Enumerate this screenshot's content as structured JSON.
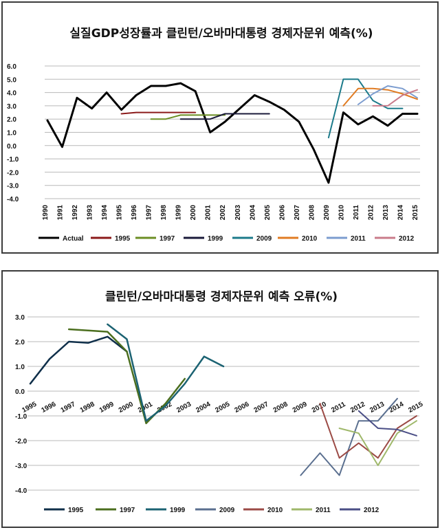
{
  "chart_data": [
    {
      "type": "line",
      "title": "실질GDP성장률과 클린턴/오바마대통령 경제자문위 예측(%)",
      "xlabel": "",
      "ylabel": "",
      "ylim": [
        -4.0,
        6.0
      ],
      "y_ticks": [
        "6.0",
        "5.0",
        "4.0",
        "3.0",
        "2.0",
        "1.0",
        "0.0",
        "-1.0",
        "-2.0",
        "-3.0",
        "-4.0"
      ],
      "x_ticks": [
        "1990",
        "1991",
        "1992",
        "1993",
        "1994",
        "1995",
        "1996",
        "1997",
        "1998",
        "1999",
        "2000",
        "2001",
        "2002",
        "2003",
        "2004",
        "2005",
        "2006",
        "2007",
        "2008",
        "2009",
        "2010",
        "2011",
        "2012",
        "2013",
        "2014",
        "2015"
      ],
      "grid": "horizontal",
      "legend": "bottom",
      "series": [
        {
          "name": "Actual",
          "color": "#000000",
          "width": 3,
          "x": [
            1990,
            1991,
            1992,
            1993,
            1994,
            1995,
            1996,
            1997,
            1998,
            1999,
            2000,
            2001,
            2002,
            2003,
            2004,
            2005,
            2006,
            2007,
            2008,
            2009,
            2010,
            2011,
            2012,
            2013,
            2014,
            2015
          ],
          "values": [
            1.9,
            -0.1,
            3.6,
            2.8,
            4.0,
            2.7,
            3.8,
            4.5,
            4.5,
            4.7,
            4.1,
            1.0,
            1.8,
            2.8,
            3.8,
            3.3,
            2.7,
            1.8,
            -0.3,
            -2.8,
            2.5,
            1.6,
            2.2,
            1.5,
            2.4,
            2.4
          ]
        },
        {
          "name": "1995",
          "color": "#8b1a1a",
          "width": 2,
          "x": [
            1995,
            1996,
            1997,
            1998,
            1999,
            2000
          ],
          "values": [
            2.4,
            2.5,
            2.5,
            2.5,
            2.5,
            2.5
          ]
        },
        {
          "name": "1997",
          "color": "#6b8e23",
          "width": 2,
          "x": [
            1997,
            1998,
            1999,
            2000,
            2001,
            2002
          ],
          "values": [
            2.0,
            2.0,
            2.3,
            2.3,
            2.3,
            2.3
          ]
        },
        {
          "name": "1999",
          "color": "#1a1a3a",
          "width": 2,
          "x": [
            1999,
            2000,
            2001,
            2002,
            2003,
            2004,
            2005
          ],
          "values": [
            2.0,
            2.0,
            2.0,
            2.4,
            2.4,
            2.4,
            2.4
          ]
        },
        {
          "name": "2009",
          "color": "#1b7a8a",
          "width": 2,
          "x": [
            2009,
            2010,
            2011,
            2012,
            2013,
            2014
          ],
          "values": [
            0.6,
            5.0,
            5.0,
            3.4,
            2.8,
            2.8
          ]
        },
        {
          "name": "2010",
          "color": "#e07b22",
          "width": 2,
          "x": [
            2010,
            2011,
            2012,
            2013,
            2014,
            2015
          ],
          "values": [
            3.0,
            4.3,
            4.3,
            4.2,
            3.9,
            3.5
          ]
        },
        {
          "name": "2011",
          "color": "#7b9ccf",
          "width": 2,
          "x": [
            2011,
            2012,
            2013,
            2014,
            2015
          ],
          "values": [
            3.1,
            3.9,
            4.5,
            4.3,
            3.6
          ]
        },
        {
          "name": "2012",
          "color": "#c97b8a",
          "width": 2,
          "x": [
            2012,
            2013,
            2014,
            2015
          ],
          "values": [
            3.0,
            3.0,
            3.8,
            4.2
          ]
        }
      ]
    },
    {
      "type": "line",
      "title": "클린턴/오바마대통령 경제자문위 예측 오류(%)",
      "xlabel": "",
      "ylabel": "",
      "ylim": [
        -4.0,
        3.0
      ],
      "y_ticks": [
        "3.0",
        "2.0",
        "1.0",
        "0.0",
        "-1.0",
        "-2.0",
        "-3.0",
        "-4.0"
      ],
      "x_ticks": [
        "1995",
        "1996",
        "1997",
        "1998",
        "1999",
        "2000",
        "2001",
        "2002",
        "2003",
        "2004",
        "2005",
        "2006",
        "2007",
        "2008",
        "2009",
        "2010",
        "2011",
        "2012",
        "2013",
        "2014",
        "2015"
      ],
      "grid": "horizontal",
      "legend": "bottom",
      "series": [
        {
          "name": "1995",
          "color": "#0f2f4a",
          "width": 2.5,
          "x": [
            1995,
            1996,
            1997,
            1998,
            1999,
            2000
          ],
          "values": [
            0.3,
            1.3,
            2.0,
            1.95,
            2.2,
            1.6
          ]
        },
        {
          "name": "1997",
          "color": "#4b6e1e",
          "width": 2.5,
          "x": [
            1997,
            1998,
            1999,
            2000,
            2001,
            2002,
            2003
          ],
          "values": [
            2.5,
            2.45,
            2.4,
            1.6,
            -1.3,
            -0.5,
            0.5
          ]
        },
        {
          "name": "1999",
          "color": "#1b6272",
          "width": 2.5,
          "x": [
            1999,
            2000,
            2001,
            2002,
            2003,
            2004,
            2005
          ],
          "values": [
            2.7,
            2.1,
            -1.2,
            -0.6,
            0.3,
            1.4,
            1.0
          ]
        },
        {
          "name": "2009",
          "color": "#5a6f8f",
          "width": 2,
          "x": [
            2009,
            2010,
            2011,
            2012,
            2013,
            2014
          ],
          "values": [
            -3.4,
            -2.5,
            -3.4,
            -1.2,
            -1.2,
            -0.3
          ]
        },
        {
          "name": "2010",
          "color": "#9b4a45",
          "width": 2,
          "x": [
            2010,
            2011,
            2012,
            2013,
            2014,
            2015
          ],
          "values": [
            -0.5,
            -2.7,
            -2.1,
            -2.7,
            -1.5,
            -1.0
          ]
        },
        {
          "name": "2011",
          "color": "#9fb86a",
          "width": 2,
          "x": [
            2011,
            2012,
            2013,
            2014,
            2015
          ],
          "values": [
            -1.5,
            -1.7,
            -3.0,
            -1.7,
            -1.2
          ]
        },
        {
          "name": "2012",
          "color": "#4a4e86",
          "width": 2,
          "x": [
            2012,
            2013,
            2014,
            2015
          ],
          "values": [
            -0.8,
            -1.5,
            -1.55,
            -1.8
          ]
        }
      ]
    }
  ]
}
